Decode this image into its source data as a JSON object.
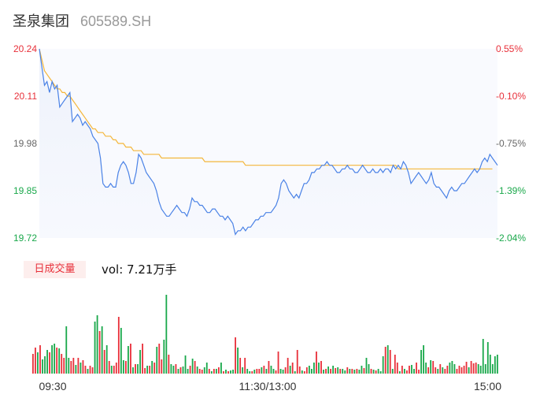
{
  "header": {
    "name": "圣泉集团",
    "code": "605589.SH"
  },
  "colors": {
    "price_line": "#4a82e6",
    "avg_line": "#f4b63a",
    "up": "#e8303a",
    "down": "#1aa84b",
    "axis_text": "#666666"
  },
  "volume_panel": {
    "badge": "日成交量",
    "value_text": "vol: 7.21万手"
  },
  "chart_data": [
    {
      "type": "line",
      "y_ticks": [
        "20.24",
        "20.11",
        "19.98",
        "19.85",
        "19.72"
      ],
      "pct_ticks": [
        "0.55%",
        "-0.10%",
        "-0.75%",
        "-1.39%",
        "-2.04%"
      ],
      "ylim": [
        19.72,
        20.24
      ],
      "series": [
        {
          "values": [
            20.24,
            20.19,
            20.14,
            20.15,
            20.12,
            20.15,
            20.13,
            20.14,
            20.08,
            20.09,
            20.1,
            20.11,
            20.12,
            20.04,
            20.05,
            20.06,
            20.05,
            20.03,
            20.04,
            20.03,
            20.02,
            20.0,
            19.99,
            19.98,
            19.94,
            19.87,
            19.86,
            19.86,
            19.87,
            19.86,
            19.86,
            19.9,
            19.92,
            19.93,
            19.92,
            19.9,
            19.87,
            19.87,
            19.9,
            19.95,
            19.94,
            19.92,
            19.9,
            19.89,
            19.88,
            19.87,
            19.85,
            19.82,
            19.8,
            19.79,
            19.78,
            19.78,
            19.79,
            19.8,
            19.81,
            19.8,
            19.79,
            19.79,
            19.78,
            19.8,
            19.83,
            19.82,
            19.82,
            19.81,
            19.81,
            19.8,
            19.79,
            19.79,
            19.8,
            19.8,
            19.79,
            19.78,
            19.78,
            19.77,
            19.78,
            19.77,
            19.76,
            19.73,
            19.74,
            19.74,
            19.75,
            19.74,
            19.75,
            19.75,
            19.76,
            19.77,
            19.77,
            19.78,
            19.78,
            19.79,
            19.79,
            19.79,
            19.8,
            19.81,
            19.83,
            19.87,
            19.88,
            19.87,
            19.85,
            19.84,
            19.83,
            19.84,
            19.83,
            19.85,
            19.87,
            19.87,
            19.88,
            19.9,
            19.9,
            19.91,
            19.91,
            19.92,
            19.92,
            19.93,
            19.92,
            19.92,
            19.91,
            19.9,
            19.9,
            19.91,
            19.91,
            19.92,
            19.91,
            19.91,
            19.9,
            19.9,
            19.91,
            19.92,
            19.91,
            19.9,
            19.9,
            19.91,
            19.9,
            19.9,
            19.91,
            19.9,
            19.91,
            19.91,
            19.9,
            19.92,
            19.91,
            19.92,
            19.91,
            19.93,
            19.92,
            19.9,
            19.87,
            19.88,
            19.89,
            19.9,
            19.89,
            19.88,
            19.87,
            19.88,
            19.9,
            19.87,
            19.86,
            19.86,
            19.85,
            19.84,
            19.83,
            19.85,
            19.86,
            19.85,
            19.85,
            19.86,
            19.87,
            19.87,
            19.88,
            19.89,
            19.9,
            19.91,
            19.9,
            19.91,
            19.93,
            19.94,
            19.93,
            19.95,
            19.94,
            19.93,
            19.92
          ],
          "color": "#4a82e6"
        },
        {
          "values": [
            20.24,
            20.21,
            20.18,
            20.17,
            20.16,
            20.15,
            20.14,
            20.13,
            20.13,
            20.12,
            20.12,
            20.11,
            20.11,
            20.1,
            20.09,
            20.08,
            20.07,
            20.06,
            20.05,
            20.04,
            20.03,
            20.02,
            20.02,
            20.01,
            20.01,
            20.01,
            20.0,
            20.0,
            20.0,
            19.99,
            19.99,
            19.98,
            19.98,
            19.98,
            19.97,
            19.97,
            19.97,
            19.96,
            19.96,
            19.96,
            19.96,
            19.95,
            19.95,
            19.95,
            19.95,
            19.95,
            19.95,
            19.95,
            19.94,
            19.94,
            19.94,
            19.94,
            19.94,
            19.94,
            19.94,
            19.94,
            19.94,
            19.94,
            19.94,
            19.94,
            19.94,
            19.94,
            19.94,
            19.94,
            19.94,
            19.93,
            19.93,
            19.93,
            19.93,
            19.93,
            19.93,
            19.93,
            19.93,
            19.93,
            19.93,
            19.93,
            19.93,
            19.93,
            19.93,
            19.93,
            19.93,
            19.92,
            19.92,
            19.92,
            19.92,
            19.92,
            19.92,
            19.92,
            19.92,
            19.92,
            19.92,
            19.92,
            19.92,
            19.92,
            19.92,
            19.92,
            19.92,
            19.92,
            19.92,
            19.92,
            19.92,
            19.92,
            19.92,
            19.92,
            19.92,
            19.92,
            19.92,
            19.92,
            19.92,
            19.92,
            19.92,
            19.92,
            19.92,
            19.92,
            19.92,
            19.92,
            19.92,
            19.92,
            19.92,
            19.92,
            19.92,
            19.92,
            19.92,
            19.92,
            19.92,
            19.92,
            19.92,
            19.92,
            19.92,
            19.92,
            19.92,
            19.92,
            19.92,
            19.92,
            19.92,
            19.92,
            19.92,
            19.92,
            19.92,
            19.92,
            19.92,
            19.91,
            19.91,
            19.91,
            19.91,
            19.91,
            19.91,
            19.91,
            19.91,
            19.91,
            19.91,
            19.91,
            19.91,
            19.91,
            19.91,
            19.91,
            19.91,
            19.91,
            19.91,
            19.91,
            19.91,
            19.91,
            19.91,
            19.91,
            19.91,
            19.91,
            19.91,
            19.91,
            19.91,
            19.91,
            19.91,
            19.91,
            19.91,
            19.91,
            19.91,
            19.91,
            19.91,
            19.91,
            19.91
          ],
          "color": "#f4b63a"
        }
      ]
    },
    {
      "type": "bar",
      "x_labels": [
        "09:30",
        "11:30/13:00",
        "15:00"
      ],
      "values": [
        0.25,
        0.33,
        0.27,
        0.36,
        0.18,
        0.22,
        0.3,
        0.27,
        0.36,
        0.38,
        0.33,
        0.32,
        0.25,
        0.2,
        0.6,
        0.2,
        0.16,
        0.2,
        0.11,
        0.2,
        0.14,
        0.17,
        0.1,
        0.06,
        0.1,
        0.08,
        0.66,
        0.74,
        0.54,
        0.6,
        0.3,
        0.36,
        0.16,
        0.1,
        0.1,
        0.14,
        0.72,
        0.58,
        0.17,
        0.16,
        0.35,
        0.38,
        0.08,
        0.12,
        0.12,
        0.3,
        0.38,
        0.07,
        0.1,
        0.1,
        0.16,
        0.14,
        0.34,
        0.38,
        0.18,
        0.43,
        1.0,
        0.24,
        0.12,
        0.1,
        0.12,
        0.06,
        0.08,
        0.09,
        0.23,
        0.06,
        0.1,
        0.19,
        0.16,
        0.09,
        0.06,
        0.05,
        0.08,
        0.14,
        0.06,
        0.03,
        0.06,
        0.06,
        0.08,
        0.14,
        0.03,
        0.05,
        0.03,
        0.04,
        0.05,
        0.46,
        0.33,
        0.2,
        0.08,
        0.2,
        0.06,
        0.03,
        0.03,
        0.05,
        0.06,
        0.06,
        0.08,
        0.1,
        0.06,
        0.16,
        0.1,
        0.06,
        0.04,
        0.28,
        0.06,
        0.05,
        0.08,
        0.2,
        0.1,
        0.14,
        0.03,
        0.3,
        0.09,
        0.04,
        0.03,
        0.08,
        0.1,
        0.06,
        0.14,
        0.28,
        0.14,
        0.16,
        0.05,
        0.06,
        0.09,
        0.06,
        0.1,
        0.07,
        0.08,
        0.06,
        0.06,
        0.04,
        0.08,
        0.06,
        0.06,
        0.05,
        0.06,
        0.05,
        0.1,
        0.07,
        0.2,
        0.12,
        0.06,
        0.05,
        0.04,
        0.06,
        0.03,
        0.22,
        0.34,
        0.36,
        0.3,
        0.06,
        0.24,
        0.14,
        0.03,
        0.1,
        0.06,
        0.04,
        0.1,
        0.11,
        0.06,
        0.14,
        0.05,
        0.3,
        0.36,
        0.14,
        0.08,
        0.17,
        0.16,
        0.08,
        0.06,
        0.12,
        0.08,
        0.06,
        0.1,
        0.14,
        0.16,
        0.12,
        0.06,
        0.1,
        0.08,
        0.1,
        0.15,
        0.08,
        0.16,
        0.13,
        0.14,
        0.12,
        0.1,
        0.44,
        0.12,
        0.4,
        0.24,
        0.12,
        0.22,
        0.24
      ],
      "colors": [
        "r",
        "r",
        "g",
        "r",
        "g",
        "g",
        "g",
        "r",
        "g",
        "g",
        "r",
        "g",
        "r",
        "r",
        "g",
        "g",
        "r",
        "r",
        "g",
        "r",
        "g",
        "r",
        "r",
        "g",
        "r",
        "r",
        "g",
        "g",
        "r",
        "g",
        "r",
        "g",
        "r",
        "g",
        "r",
        "r",
        "r",
        "g",
        "g",
        "r",
        "g",
        "r",
        "g",
        "r",
        "g",
        "g",
        "r",
        "r",
        "g",
        "r",
        "g",
        "r",
        "g",
        "r",
        "r",
        "g",
        "g",
        "r",
        "g",
        "g",
        "r",
        "g",
        "r",
        "g",
        "g",
        "g",
        "r",
        "g",
        "r",
        "g",
        "r",
        "r",
        "g",
        "g",
        "r",
        "g",
        "r",
        "g",
        "r",
        "g",
        "r",
        "g",
        "r",
        "g",
        "g",
        "r",
        "g",
        "r",
        "g",
        "r",
        "g",
        "g",
        "r",
        "g",
        "r",
        "r",
        "g",
        "r",
        "g",
        "r",
        "g",
        "g",
        "r",
        "r",
        "g",
        "g",
        "r",
        "r",
        "g",
        "r",
        "g",
        "r",
        "r",
        "g",
        "r",
        "r",
        "g",
        "g",
        "g",
        "r",
        "g",
        "r",
        "g",
        "r",
        "g",
        "r",
        "g",
        "r",
        "g",
        "r",
        "g",
        "g",
        "r",
        "g",
        "r",
        "g",
        "r",
        "g",
        "g",
        "r",
        "g",
        "g",
        "r",
        "g",
        "r",
        "g",
        "g",
        "g",
        "r",
        "g",
        "r",
        "g",
        "r",
        "r",
        "g",
        "r",
        "g",
        "r",
        "r",
        "g",
        "g",
        "r",
        "r",
        "g",
        "g",
        "g",
        "r",
        "g",
        "r",
        "r",
        "g",
        "r",
        "g",
        "r",
        "r",
        "g",
        "g",
        "g",
        "r",
        "r",
        "r",
        "r",
        "r",
        "g",
        "r",
        "r",
        "r",
        "g"
      ]
    }
  ]
}
